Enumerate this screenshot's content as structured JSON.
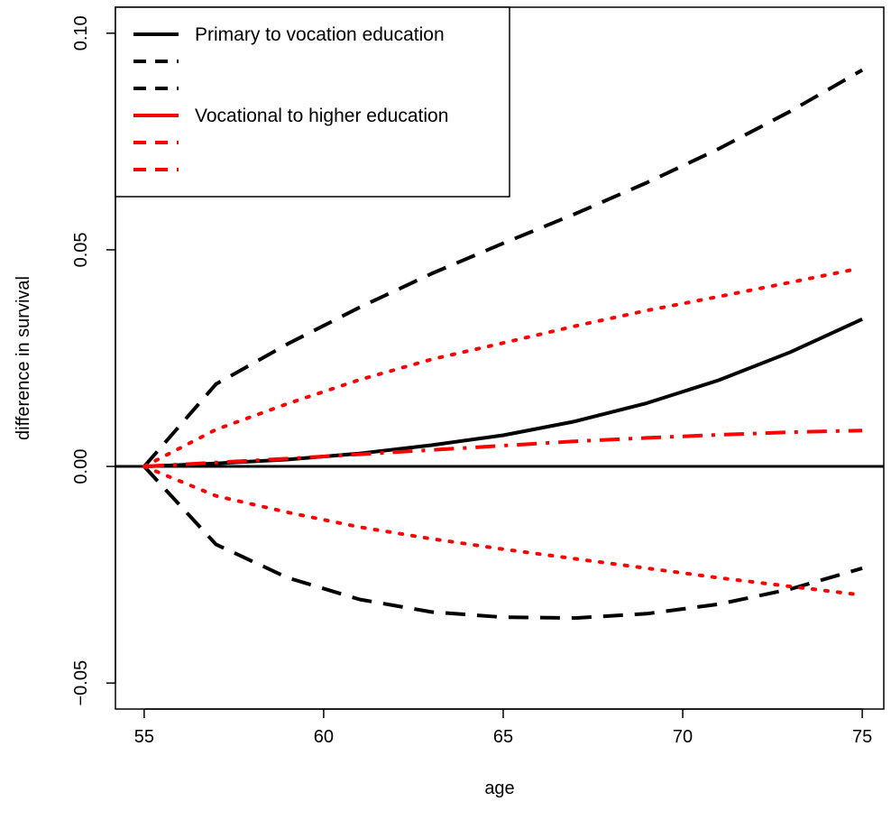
{
  "chart_data": {
    "type": "line",
    "title": "",
    "xlabel": "age",
    "ylabel": "difference in survival",
    "xlim": [
      54.2,
      75.6
    ],
    "ylim": [
      -0.056,
      0.106
    ],
    "x_ticks": [
      55,
      60,
      65,
      70,
      75
    ],
    "y_ticks": [
      -0.05,
      0.0,
      0.05,
      0.1
    ],
    "y_tick_labels": [
      "−0.05",
      "0.00",
      "0.05",
      "0.10"
    ],
    "reference_line_y": 0,
    "legend": {
      "position": "top-left",
      "entries": [
        {
          "label": "Primary to vocation education",
          "color": "#000000",
          "style": "solid"
        },
        {
          "label": "",
          "color": "#000000",
          "style": "dashed"
        },
        {
          "label": "",
          "color": "#000000",
          "style": "dashed"
        },
        {
          "label": "Vocational to higher education",
          "color": "#ff0000",
          "style": "solid"
        },
        {
          "label": "",
          "color": "#ff0000",
          "style": "dashed"
        },
        {
          "label": "",
          "color": "#ff0000",
          "style": "dashed"
        }
      ]
    },
    "series": [
      {
        "color": "#000000",
        "style": "solid",
        "x": [
          55,
          57,
          59,
          61,
          63,
          65,
          67,
          69,
          71,
          73,
          75
        ],
        "y": [
          0,
          0.0007,
          0.0016,
          0.003,
          0.0049,
          0.0072,
          0.0104,
          0.0146,
          0.0199,
          0.0264,
          0.034
        ]
      },
      {
        "color": "#000000",
        "style": "dashed",
        "x": [
          55,
          57,
          59,
          61,
          63,
          65,
          67,
          69,
          71,
          73,
          75
        ],
        "y": [
          0,
          0.019,
          0.0283,
          0.0367,
          0.0445,
          0.0515,
          0.0583,
          0.0655,
          0.0733,
          0.082,
          0.0915
        ]
      },
      {
        "color": "#000000",
        "style": "dashed",
        "x": [
          55,
          57,
          59,
          61,
          63,
          65,
          67,
          69,
          71,
          73,
          75
        ],
        "y": [
          0,
          -0.018,
          -0.0257,
          -0.0307,
          -0.0336,
          -0.0348,
          -0.035,
          -0.034,
          -0.0318,
          -0.0283,
          -0.0235
        ]
      },
      {
        "color": "#ff0000",
        "style": "dashdot",
        "x": [
          55,
          57,
          59,
          61,
          63,
          65,
          67,
          69,
          71,
          73,
          75
        ],
        "y": [
          0,
          0.0009,
          0.0018,
          0.0028,
          0.0038,
          0.0048,
          0.0058,
          0.0066,
          0.0073,
          0.0079,
          0.0083
        ]
      },
      {
        "color": "#ff0000",
        "style": "dotted",
        "x": [
          55,
          57,
          59,
          61,
          63,
          65,
          67,
          69,
          71,
          73,
          74.8
        ],
        "y": [
          0,
          0.0085,
          0.0145,
          0.02,
          0.0247,
          0.0285,
          0.0324,
          0.036,
          0.0392,
          0.0425,
          0.0455
        ]
      },
      {
        "color": "#ff0000",
        "style": "dotted",
        "x": [
          55,
          57,
          59,
          61,
          63,
          65,
          67,
          69,
          71,
          73,
          74.8
        ],
        "y": [
          0,
          -0.0068,
          -0.0106,
          -0.014,
          -0.0167,
          -0.0191,
          -0.0213,
          -0.0235,
          -0.0257,
          -0.0277,
          -0.0295
        ]
      }
    ]
  }
}
